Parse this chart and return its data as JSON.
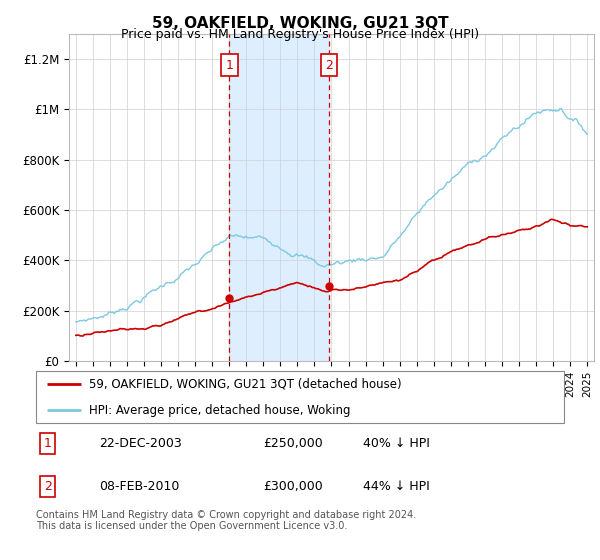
{
  "title": "59, OAKFIELD, WOKING, GU21 3QT",
  "subtitle": "Price paid vs. HM Land Registry's House Price Index (HPI)",
  "ylabel_ticks": [
    "£0",
    "£200K",
    "£400K",
    "£600K",
    "£800K",
    "£1M",
    "£1.2M"
  ],
  "ytick_vals": [
    0,
    200000,
    400000,
    600000,
    800000,
    1000000,
    1200000
  ],
  "ylim": [
    0,
    1300000
  ],
  "xlim_start": 1994.6,
  "xlim_end": 2025.4,
  "hpi_color": "#7ec8e3",
  "price_color": "#cc0000",
  "vline_color": "#cc0000",
  "shade_color": "#ddeeff",
  "transaction1_x": 2004.0,
  "transaction1_price": 250000,
  "transaction2_x": 2009.85,
  "transaction2_price": 300000,
  "legend_line1": "59, OAKFIELD, WOKING, GU21 3QT (detached house)",
  "legend_line2": "HPI: Average price, detached house, Woking",
  "footer": "Contains HM Land Registry data © Crown copyright and database right 2024.\nThis data is licensed under the Open Government Licence v3.0.",
  "table_row1": [
    "1",
    "22-DEC-2003",
    "£250,000",
    "40% ↓ HPI"
  ],
  "table_row2": [
    "2",
    "08-FEB-2010",
    "£300,000",
    "44% ↓ HPI"
  ]
}
